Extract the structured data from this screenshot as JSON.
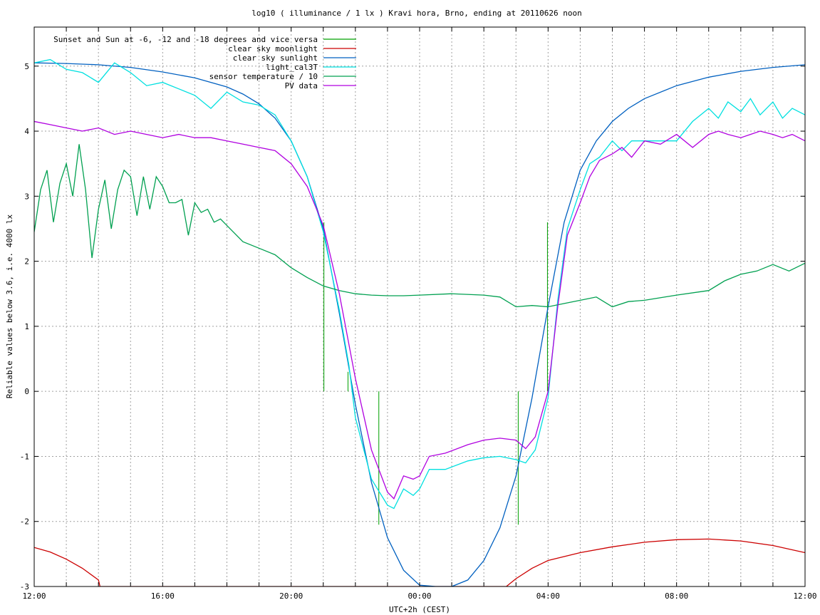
{
  "chart_data": {
    "type": "line",
    "title": "log10 ( illuminance / 1 lx ) Kravi hora, Brno, ending at 20110626 noon",
    "xlabel": "UTC+2h (CEST)",
    "ylabel": "Reliable values below 3.6, i.e. 4000 lx",
    "x_unit": "hours since 12:00 (local time UTC+2h)",
    "xlim": [
      0,
      24
    ],
    "ylim": [
      -3,
      5.6
    ],
    "x_ticks": [
      {
        "x": 0,
        "label": "12:00"
      },
      {
        "x": 4,
        "label": "16:00"
      },
      {
        "x": 8,
        "label": "20:00"
      },
      {
        "x": 12,
        "label": "00:00"
      },
      {
        "x": 16,
        "label": "04:00"
      },
      {
        "x": 20,
        "label": "08:00"
      },
      {
        "x": 24,
        "label": "12:00"
      }
    ],
    "y_ticks": [
      {
        "y": -3,
        "label": "-3"
      },
      {
        "y": -2,
        "label": "-2"
      },
      {
        "y": -1,
        "label": "-1"
      },
      {
        "y": 0,
        "label": "0"
      },
      {
        "y": 1,
        "label": "1"
      },
      {
        "y": 2,
        "label": "2"
      },
      {
        "y": 3,
        "label": "3"
      },
      {
        "y": 4,
        "label": "4"
      },
      {
        "y": 5,
        "label": "5"
      }
    ],
    "grid": true,
    "legend_position": "top-left",
    "series": [
      {
        "name": "Sunset and Sun at -6, -12 and -18 degrees and vice versa",
        "color": "#00a000",
        "kind": "impulses",
        "x": [
          9.02,
          9.77,
          10.73,
          15.07,
          15.98
        ],
        "y": [
          2.6,
          0.3,
          -2.05,
          -2.05,
          2.6
        ]
      },
      {
        "name": "clear sky moonlight",
        "color": "#cc0000",
        "kind": "line",
        "x": [
          0.0,
          0.5,
          1.0,
          1.5,
          2.0,
          2.05,
          14.7,
          15.0,
          15.5,
          16.0,
          17.0,
          18.0,
          19.0,
          20.0,
          21.0,
          22.0,
          23.0,
          24.0
        ],
        "y": [
          -2.4,
          -2.47,
          -2.58,
          -2.72,
          -2.9,
          -3.0,
          -3.0,
          -2.88,
          -2.72,
          -2.6,
          -2.48,
          -2.39,
          -2.32,
          -2.28,
          -2.27,
          -2.3,
          -2.37,
          -2.48
        ]
      },
      {
        "name": "clear sky sunlight",
        "color": "#0060c0",
        "kind": "line",
        "x": [
          0.0,
          1.0,
          2.0,
          3.0,
          4.0,
          5.0,
          6.0,
          6.5,
          7.0,
          7.5,
          8.0,
          8.5,
          9.0,
          9.5,
          10.0,
          10.5,
          11.0,
          11.5,
          12.0,
          12.5,
          13.0,
          13.5,
          14.0,
          14.5,
          15.0,
          15.5,
          16.0,
          16.5,
          17.0,
          17.5,
          18.0,
          18.5,
          19.0,
          20.0,
          21.0,
          22.0,
          23.0,
          24.0
        ],
        "y": [
          5.05,
          5.04,
          5.02,
          4.98,
          4.91,
          4.82,
          4.68,
          4.57,
          4.42,
          4.2,
          3.85,
          3.3,
          2.5,
          1.2,
          -0.2,
          -1.4,
          -2.25,
          -2.75,
          -2.98,
          -3.0,
          -3.0,
          -2.9,
          -2.6,
          -2.1,
          -1.3,
          -0.1,
          1.3,
          2.6,
          3.4,
          3.85,
          4.15,
          4.35,
          4.5,
          4.7,
          4.83,
          4.92,
          4.98,
          5.02
        ]
      },
      {
        "name": "light_cal3T",
        "color": "#00e0e0",
        "kind": "line",
        "x": [
          0.0,
          0.5,
          1.0,
          1.5,
          2.0,
          2.5,
          3.0,
          3.5,
          4.0,
          4.5,
          5.0,
          5.5,
          6.0,
          6.5,
          7.0,
          7.5,
          8.0,
          8.5,
          9.0,
          9.5,
          9.8,
          10.0,
          10.5,
          11.0,
          11.2,
          11.5,
          11.8,
          12.0,
          12.3,
          12.8,
          13.5,
          14.0,
          14.5,
          15.0,
          15.3,
          15.6,
          16.0,
          16.3,
          16.6,
          17.0,
          17.3,
          17.6,
          18.0,
          18.3,
          18.6,
          19.0,
          19.5,
          20.0,
          20.5,
          21.0,
          21.3,
          21.6,
          22.0,
          22.3,
          22.6,
          23.0,
          23.3,
          23.6,
          24.0
        ],
        "y": [
          5.05,
          5.1,
          4.95,
          4.9,
          4.75,
          5.05,
          4.9,
          4.7,
          4.75,
          4.65,
          4.55,
          4.35,
          4.6,
          4.45,
          4.4,
          4.25,
          3.85,
          3.3,
          2.45,
          1.25,
          0.4,
          -0.4,
          -1.35,
          -1.75,
          -1.8,
          -1.5,
          -1.6,
          -1.5,
          -1.2,
          -1.2,
          -1.07,
          -1.02,
          -1.0,
          -1.05,
          -1.1,
          -0.9,
          -0.1,
          1.4,
          2.5,
          3.1,
          3.5,
          3.6,
          3.85,
          3.7,
          3.85,
          3.85,
          3.85,
          3.85,
          4.15,
          4.35,
          4.2,
          4.45,
          4.3,
          4.5,
          4.25,
          4.45,
          4.2,
          4.35,
          4.25
        ]
      },
      {
        "name": "sensor temperature / 10",
        "color": "#00a050",
        "kind": "line",
        "x": [
          0.0,
          0.2,
          0.4,
          0.6,
          0.8,
          1.0,
          1.2,
          1.4,
          1.6,
          1.8,
          2.0,
          2.2,
          2.4,
          2.6,
          2.8,
          3.0,
          3.2,
          3.4,
          3.6,
          3.8,
          4.0,
          4.2,
          4.4,
          4.6,
          4.8,
          5.0,
          5.2,
          5.4,
          5.6,
          5.8,
          6.0,
          6.5,
          7.0,
          7.5,
          8.0,
          8.5,
          9.0,
          9.5,
          10.0,
          10.5,
          11.0,
          11.5,
          12.0,
          13.0,
          14.0,
          14.5,
          15.0,
          15.5,
          16.0,
          16.5,
          17.0,
          17.5,
          18.0,
          18.5,
          19.0,
          20.0,
          21.0,
          21.5,
          22.0,
          22.5,
          23.0,
          23.5,
          24.0
        ],
        "y": [
          2.45,
          3.1,
          3.4,
          2.6,
          3.2,
          3.5,
          3.0,
          3.8,
          3.1,
          2.05,
          2.8,
          3.25,
          2.5,
          3.1,
          3.4,
          3.3,
          2.7,
          3.3,
          2.8,
          3.3,
          3.15,
          2.9,
          2.9,
          2.95,
          2.4,
          2.9,
          2.75,
          2.8,
          2.6,
          2.65,
          2.55,
          2.3,
          2.2,
          2.1,
          1.9,
          1.75,
          1.62,
          1.55,
          1.5,
          1.48,
          1.47,
          1.47,
          1.48,
          1.5,
          1.48,
          1.45,
          1.3,
          1.32,
          1.3,
          1.35,
          1.4,
          1.45,
          1.3,
          1.38,
          1.4,
          1.48,
          1.55,
          1.7,
          1.8,
          1.85,
          1.95,
          1.85,
          1.97
        ]
      },
      {
        "name": "PV data",
        "color": "#b000e0",
        "kind": "line",
        "x": [
          0.0,
          0.5,
          1.0,
          1.5,
          2.0,
          2.5,
          3.0,
          3.5,
          4.0,
          4.5,
          5.0,
          5.5,
          6.0,
          6.5,
          7.0,
          7.5,
          8.0,
          8.5,
          9.0,
          9.5,
          10.0,
          10.5,
          11.0,
          11.2,
          11.5,
          11.8,
          12.0,
          12.3,
          12.8,
          13.5,
          14.0,
          14.5,
          15.0,
          15.3,
          15.6,
          16.0,
          16.3,
          16.6,
          17.0,
          17.3,
          17.6,
          18.0,
          18.3,
          18.6,
          19.0,
          19.5,
          20.0,
          20.5,
          21.0,
          21.3,
          21.6,
          22.0,
          22.3,
          22.6,
          23.0,
          23.3,
          23.6,
          24.0
        ],
        "y": [
          4.15,
          4.1,
          4.05,
          4.0,
          4.05,
          3.95,
          4.0,
          3.95,
          3.9,
          3.95,
          3.9,
          3.9,
          3.85,
          3.8,
          3.75,
          3.7,
          3.5,
          3.15,
          2.55,
          1.5,
          0.2,
          -0.9,
          -1.55,
          -1.65,
          -1.3,
          -1.35,
          -1.3,
          -1.0,
          -0.95,
          -0.82,
          -0.75,
          -0.72,
          -0.75,
          -0.88,
          -0.7,
          0.0,
          1.3,
          2.4,
          2.9,
          3.3,
          3.55,
          3.65,
          3.75,
          3.6,
          3.85,
          3.8,
          3.95,
          3.75,
          3.95,
          4.0,
          3.95,
          3.9,
          3.95,
          4.0,
          3.95,
          3.9,
          3.95,
          3.85
        ]
      }
    ]
  }
}
